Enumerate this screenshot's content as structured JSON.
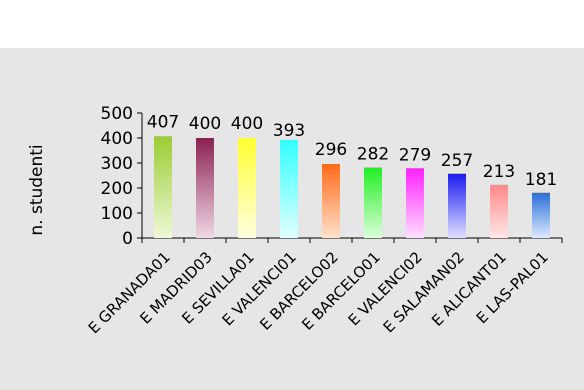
{
  "chart_data": {
    "type": "bar",
    "ylabel": "n. studenti",
    "ylim": [
      0,
      500
    ],
    "yticks": [
      0,
      100,
      200,
      300,
      400,
      500
    ],
    "grid": false,
    "legend": "none",
    "categories": [
      "E GRANADA01",
      "E MADRID03",
      "E SEVILLA01",
      "E VALENCI01",
      "E BARCELO02",
      "E BARCELO01",
      "E VALENCI02",
      "E SALAMAN02",
      "E ALICANT01",
      "E LAS-PAL01"
    ],
    "values": [
      407,
      400,
      400,
      393,
      296,
      282,
      279,
      257,
      213,
      181
    ],
    "bar_colors": [
      [
        "#9acd32",
        "#eef8d8"
      ],
      [
        "#8b2252",
        "#f0d8e4"
      ],
      [
        "#ffff33",
        "#ffffe0"
      ],
      [
        "#33ffff",
        "#e0ffff"
      ],
      [
        "#ff6a1a",
        "#ffe2cc"
      ],
      [
        "#22ee22",
        "#dcffdc"
      ],
      [
        "#ff22ff",
        "#ffe0ff"
      ],
      [
        "#1a1aee",
        "#e0e0ff"
      ],
      [
        "#ff8888",
        "#ffe8e8"
      ],
      [
        "#2a6fd6",
        "#dde9ff"
      ]
    ]
  }
}
